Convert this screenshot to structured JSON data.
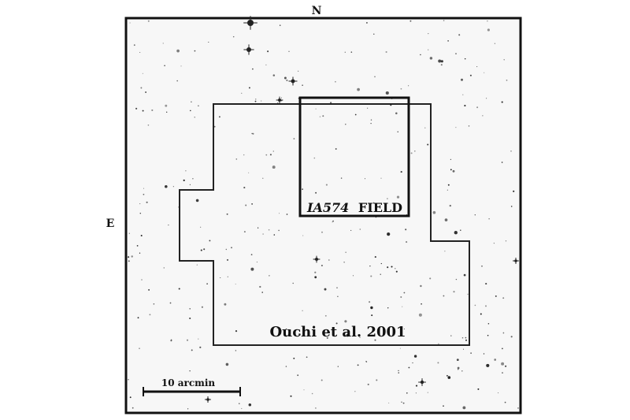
{
  "labels": {
    "north": "N",
    "east": "E",
    "field_name": "IA574",
    "field_suffix": "FIELD",
    "survey_region": "Ouchi et al. 2001",
    "scale_bar": "10 arcmin"
  },
  "colors": {
    "background": "#ffffff",
    "sky": "#f7f7f7",
    "outline": "#111111",
    "stars": "#222222"
  }
}
